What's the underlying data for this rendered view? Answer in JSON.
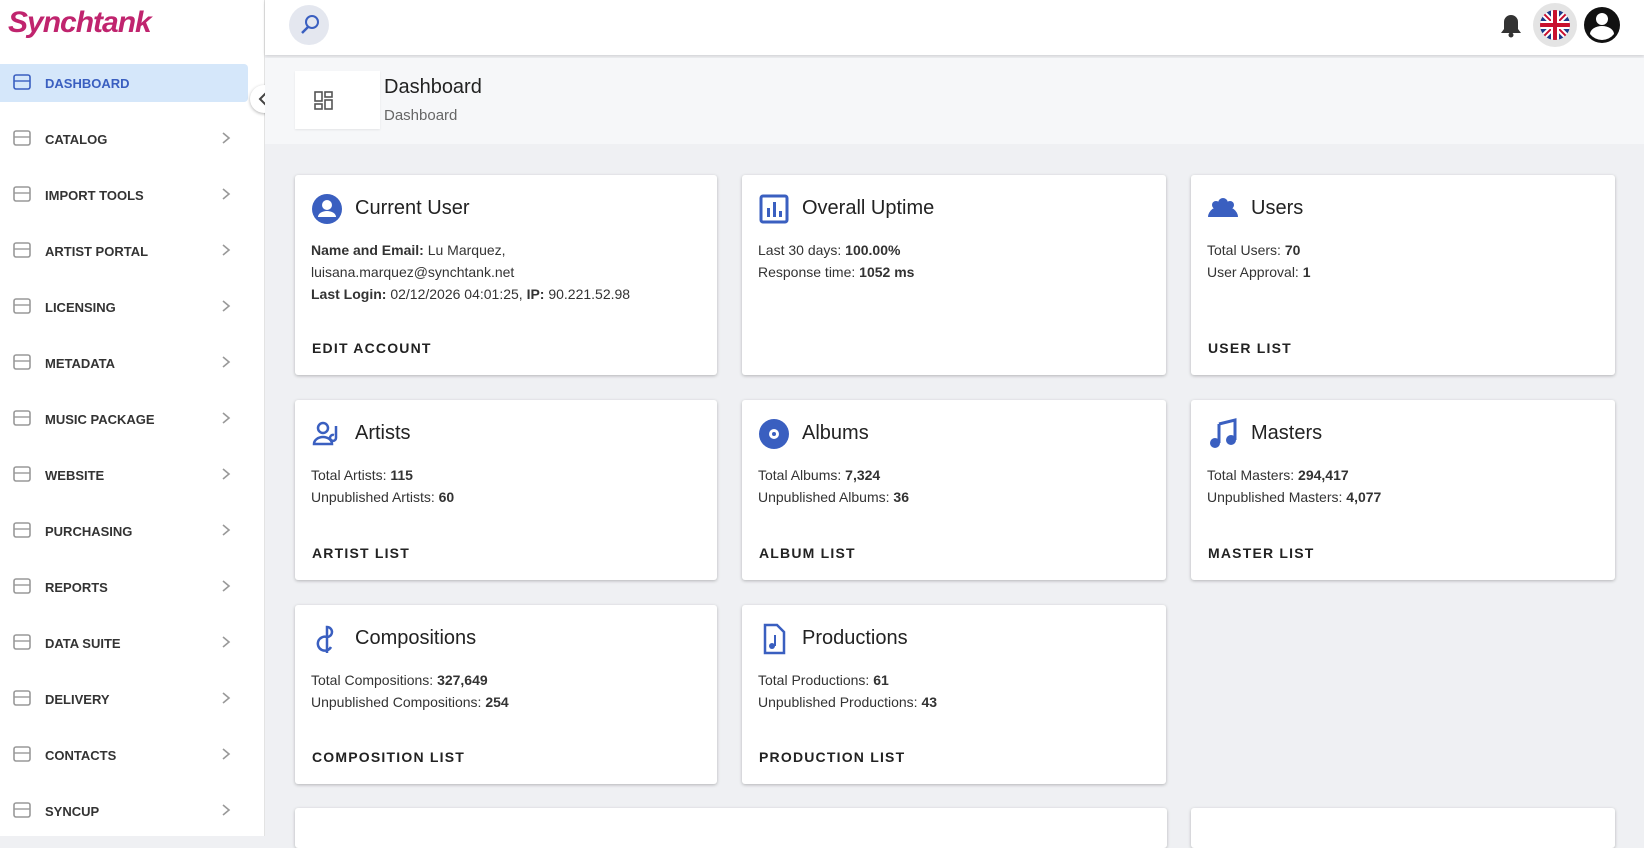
{
  "brand": "Synchtank",
  "nav": [
    "DASHBOARD",
    "CATALOG",
    "IMPORT TOOLS",
    "ARTIST PORTAL",
    "LICENSING",
    "METADATA",
    "MUSIC PACKAGE",
    "WEBSITE",
    "PURCHASING",
    "REPORTS",
    "DATA SUITE",
    "DELIVERY",
    "CONTACTS",
    "SYNCUP"
  ],
  "page": {
    "title": "Dashboard",
    "breadcrumb": "Dashboard"
  },
  "cards": [
    {
      "title": "Current User",
      "lines": [
        [
          {
            "text": "Name and Email:",
            "bold": true
          },
          {
            "text": "Lu Marquez,",
            "bold": false
          }
        ],
        [
          {
            "text": "luisana.marquez@synchtank.net",
            "bold": false
          }
        ],
        [
          {
            "text": "Last Login:",
            "bold": true
          },
          {
            "text": "02/12/2026 04:01:25,",
            "bold": false
          },
          {
            "text": "IP:",
            "bold": true
          },
          {
            "text": "90.221.52.98",
            "bold": false
          }
        ]
      ],
      "action": "EDIT ACCOUNT"
    },
    {
      "title": "Overall Uptime",
      "lines": [
        [
          {
            "text": "Last 30 days:",
            "bold": false
          },
          {
            "text": "100.00%",
            "bold": true
          }
        ],
        [
          {
            "text": "Response time:",
            "bold": false
          },
          {
            "text": "1052 ms",
            "bold": true
          }
        ]
      ]
    },
    {
      "title": "Users",
      "lines": [
        [
          {
            "text": "Total Users:",
            "bold": false
          },
          {
            "text": "70",
            "bold": true
          }
        ],
        [
          {
            "text": "User Approval:",
            "bold": false
          },
          {
            "text": "1",
            "bold": true
          }
        ]
      ],
      "action": "USER LIST"
    },
    {
      "title": "Artists",
      "lines": [
        [
          {
            "text": "Total Artists:",
            "bold": false
          },
          {
            "text": "115",
            "bold": true
          }
        ],
        [
          {
            "text": "Unpublished Artists:",
            "bold": false
          },
          {
            "text": "60",
            "bold": true
          }
        ]
      ],
      "action": "ARTIST LIST"
    },
    {
      "title": "Albums",
      "lines": [
        [
          {
            "text": "Total Albums:",
            "bold": false
          },
          {
            "text": "7,324",
            "bold": true
          }
        ],
        [
          {
            "text": "Unpublished Albums:",
            "bold": false
          },
          {
            "text": "36",
            "bold": true
          }
        ]
      ],
      "action": "ALBUM LIST"
    },
    {
      "title": "Masters",
      "lines": [
        [
          {
            "text": "Total Masters:",
            "bold": false
          },
          {
            "text": "294,417",
            "bold": true
          }
        ],
        [
          {
            "text": "Unpublished Masters:",
            "bold": false
          },
          {
            "text": "4,077",
            "bold": true
          }
        ]
      ],
      "action": "MASTER LIST"
    },
    {
      "title": "Compositions",
      "lines": [
        [
          {
            "text": "Total Compositions:",
            "bold": false
          },
          {
            "text": "327,649",
            "bold": true
          }
        ],
        [
          {
            "text": "Unpublished Compositions:",
            "bold": false
          },
          {
            "text": "254",
            "bold": true
          }
        ]
      ],
      "action": "COMPOSITION LIST"
    },
    {
      "title": "Productions",
      "lines": [
        [
          {
            "text": "Total Productions:",
            "bold": false
          },
          {
            "text": "61",
            "bold": true
          }
        ],
        [
          {
            "text": "Unpublished Productions:",
            "bold": false
          },
          {
            "text": "43",
            "bold": true
          }
        ]
      ],
      "action": "PRODUCTION LIST"
    }
  ]
}
